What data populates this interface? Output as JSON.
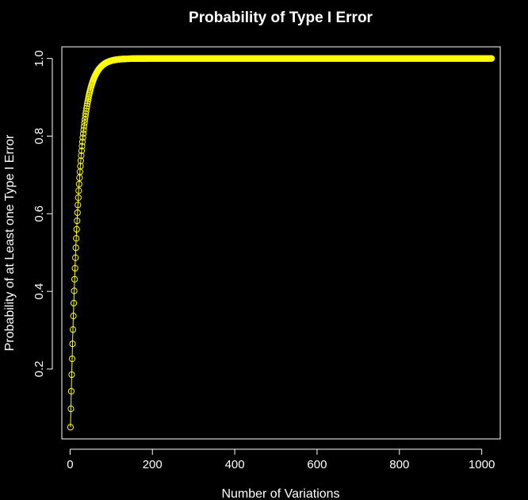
{
  "chart_data": {
    "type": "line",
    "title": "Probability of Type I Error",
    "xlabel": "Number of Variations",
    "ylabel": "Probability of at Least one Type I Error",
    "xlim": [
      -20,
      1045
    ],
    "ylim": [
      0.02,
      1.03
    ],
    "x_ticks": [
      "0",
      "200",
      "400",
      "600",
      "800",
      "1000"
    ],
    "y_ticks": [
      "0.2",
      "0.4",
      "0.6",
      "0.8",
      "1.0"
    ],
    "series": [
      {
        "formula": "1 - (1 - alpha)^n",
        "alpha": 0.05,
        "x_start": 1,
        "x_end": 1024,
        "x_step": 1,
        "marker": "circle-open",
        "line": true
      }
    ],
    "colors": {
      "background": "#000000",
      "foreground": "#ffffff",
      "series": "#ffff00"
    },
    "grid": false,
    "legend": "none"
  }
}
